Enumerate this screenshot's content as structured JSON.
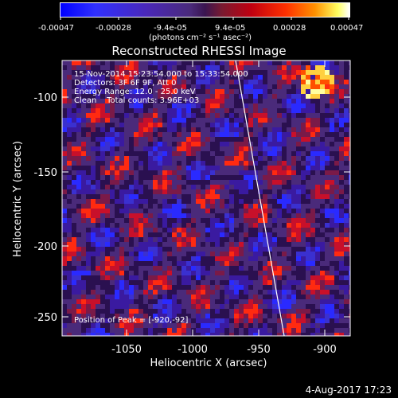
{
  "colorbar": {
    "tick_labels": [
      "-0.00047",
      "-0.00028",
      "-9.4e-05",
      "9.4e-05",
      "0.00028",
      "0.00047"
    ],
    "units_label": "(photons cm⁻² s⁻¹ asec⁻²)"
  },
  "title": "Reconstructed RHESSI Image",
  "overlay": {
    "time_range": "15-Nov-2014 15:23:54.000 to 15:33:54.000",
    "detectors": "Detectors: 3F 6F 9F, Att 0",
    "energy": "Energy Range: 12.0 - 25.0 keV",
    "method": "Clean    Total counts: 3.96E+03",
    "peak": "Position of Peak = [-920,-92]"
  },
  "axes": {
    "x_label": "Heliocentric X (arcsec)",
    "y_label": "Heliocentric Y (arcsec)",
    "x_ticks": [
      "-1050",
      "-1000",
      "-950",
      "-900"
    ],
    "y_ticks": [
      "-100",
      "-150",
      "-200",
      "-250"
    ]
  },
  "footer_timestamp": "4-Aug-2017 17:23",
  "colors": {
    "negative": "#1a1aff",
    "neutral": "#4a2a7a",
    "positive": "#ff2000",
    "peak": "#ffffa0"
  }
}
